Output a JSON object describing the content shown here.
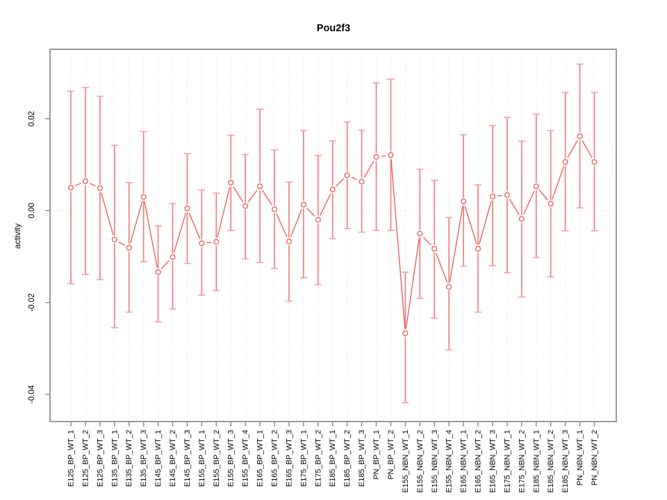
{
  "page": {
    "background": "#ffffff"
  },
  "chart_data": {
    "type": "scatter",
    "subtype": "points-with-error-bars",
    "title": "Pou2f3",
    "xlabel": "",
    "ylabel": "activity",
    "legend": "none",
    "grid": {
      "vertical_dotted_per_category": true,
      "horizontal_dotted_at_zero": true
    },
    "ylim": [
      -0.0458,
      0.035
    ],
    "yticks": [
      {
        "value": 0.02,
        "label": "0.02"
      },
      {
        "value": 0.0,
        "label": "0.00"
      },
      {
        "value": -0.02,
        "label": "-0.02"
      },
      {
        "value": -0.04,
        "label": "-0.04"
      }
    ],
    "categories": [
      "E125_BP_WT_1",
      "E125_BP_WT_2",
      "E125_BP_WT_3",
      "E135_BP_WT_1",
      "E135_BP_WT_2",
      "E135_BP_WT_3",
      "E145_BP_WT_1",
      "E145_BP_WT_2",
      "E145_BP_WT_3",
      "E155_BP_WT_1",
      "E155_BP_WT_2",
      "E155_BP_WT_3",
      "E155_BP_WT_4",
      "E165_BP_WT_1",
      "E165_BP_WT_2",
      "E165_BP_WT_3",
      "E175_BP_WT_1",
      "E175_BP_WT_2",
      "E185_BP_WT_1",
      "E185_BP_WT_2",
      "E185_BP_WT_3",
      "PN_BP_WT_1",
      "PN_BP_WT_2",
      "E155_NBN_WT_1",
      "E155_NBN_WT_2",
      "E155_NBN_WT_3",
      "E155_NBN_WT_4",
      "E165_NBN_WT_1",
      "E165_NBN_WT_2",
      "E165_NBN_WT_3",
      "E175_NBN_WT_1",
      "E175_NBN_WT_2",
      "E185_NBN_WT_1",
      "E185_NBN_WT_2",
      "E185_NBN_WT_3",
      "PN_NBN_WT_1",
      "PN_NBN_WT_2"
    ],
    "series": [
      {
        "name": "activity",
        "values": [
          0.005,
          0.0064,
          0.0049,
          -0.0063,
          -0.0081,
          0.003,
          -0.0134,
          -0.0101,
          0.0005,
          -0.0071,
          -0.0068,
          0.0061,
          0.001,
          0.0053,
          0.0003,
          -0.0067,
          0.0013,
          -0.002,
          0.0046,
          0.0077,
          0.0063,
          0.0117,
          0.0121,
          -0.0267,
          -0.005,
          -0.0083,
          -0.0166,
          0.002,
          -0.0083,
          0.0031,
          0.0034,
          -0.0018,
          0.0053,
          0.0015,
          0.0106,
          0.0162,
          0.0106
        ],
        "error_upper": [
          0.026,
          0.0268,
          0.0249,
          0.0142,
          0.0061,
          0.0172,
          -0.0033,
          0.0015,
          0.0124,
          0.0045,
          0.0038,
          0.0164,
          0.0122,
          0.0221,
          0.0132,
          0.0062,
          0.0174,
          0.012,
          0.0152,
          0.0193,
          0.0175,
          0.0278,
          0.0286,
          -0.0134,
          0.009,
          0.0066,
          -0.0015,
          0.0165,
          0.0056,
          0.0185,
          0.0203,
          0.0151,
          0.021,
          0.0174,
          0.0257,
          0.0319,
          0.0257
        ],
        "error_lower": [
          -0.0159,
          -0.0139,
          -0.015,
          -0.0255,
          -0.0221,
          -0.0111,
          -0.0242,
          -0.0214,
          -0.0115,
          -0.0184,
          -0.0174,
          -0.0043,
          -0.0105,
          -0.0113,
          -0.0126,
          -0.0197,
          -0.0146,
          -0.0161,
          -0.0061,
          -0.0039,
          -0.0047,
          -0.0043,
          -0.0043,
          -0.0418,
          -0.0191,
          -0.0234,
          -0.0303,
          -0.0121,
          -0.0221,
          -0.012,
          -0.0135,
          -0.0188,
          -0.0102,
          -0.0144,
          -0.0044,
          0.0006,
          -0.0044
        ]
      }
    ],
    "colors": {
      "point": "#ee5f5f",
      "segment": "#ee5f5f",
      "error_bar": "#f07e7e",
      "error_cap": "#f4a1a1",
      "grid": "#dedede",
      "box": "#878787",
      "text": "#000000"
    }
  }
}
